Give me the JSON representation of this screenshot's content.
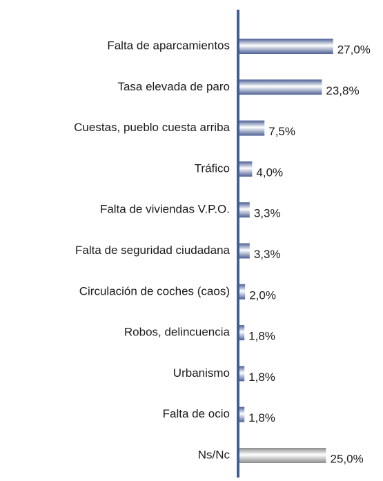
{
  "chart_data": {
    "type": "hbar",
    "categories": [
      "Falta de aparcamientos",
      "Tasa elevada de paro",
      "Cuestas, pueblo cuesta arriba",
      "Tráfico",
      "Falta de viviendas V.P.O.",
      "Falta de seguridad ciudadana",
      "Circulación de coches (caos)",
      "Robos, delincuencia",
      "Urbanismo",
      "Falta de ocio",
      "Ns/Nc"
    ],
    "values": [
      27.0,
      23.8,
      7.5,
      4.0,
      3.3,
      3.3,
      2.0,
      1.8,
      1.8,
      1.8,
      25.0
    ],
    "value_labels": [
      "27,0%",
      "23,8%",
      "7,5%",
      "4,0%",
      "3,3%",
      "3,3%",
      "2,0%",
      "1,8%",
      "1,8%",
      "1,8%",
      "25,0%"
    ],
    "colors": [
      "#4c5f94",
      "#4c5f94",
      "#4c5f94",
      "#4c5f94",
      "#4c5f94",
      "#4c5f94",
      "#4c5f94",
      "#4c5f94",
      "#4c5f94",
      "#4c5f94",
      "#8a8a8a"
    ],
    "axis_color": "#3f5f9c",
    "xlim": [
      0,
      40
    ]
  }
}
